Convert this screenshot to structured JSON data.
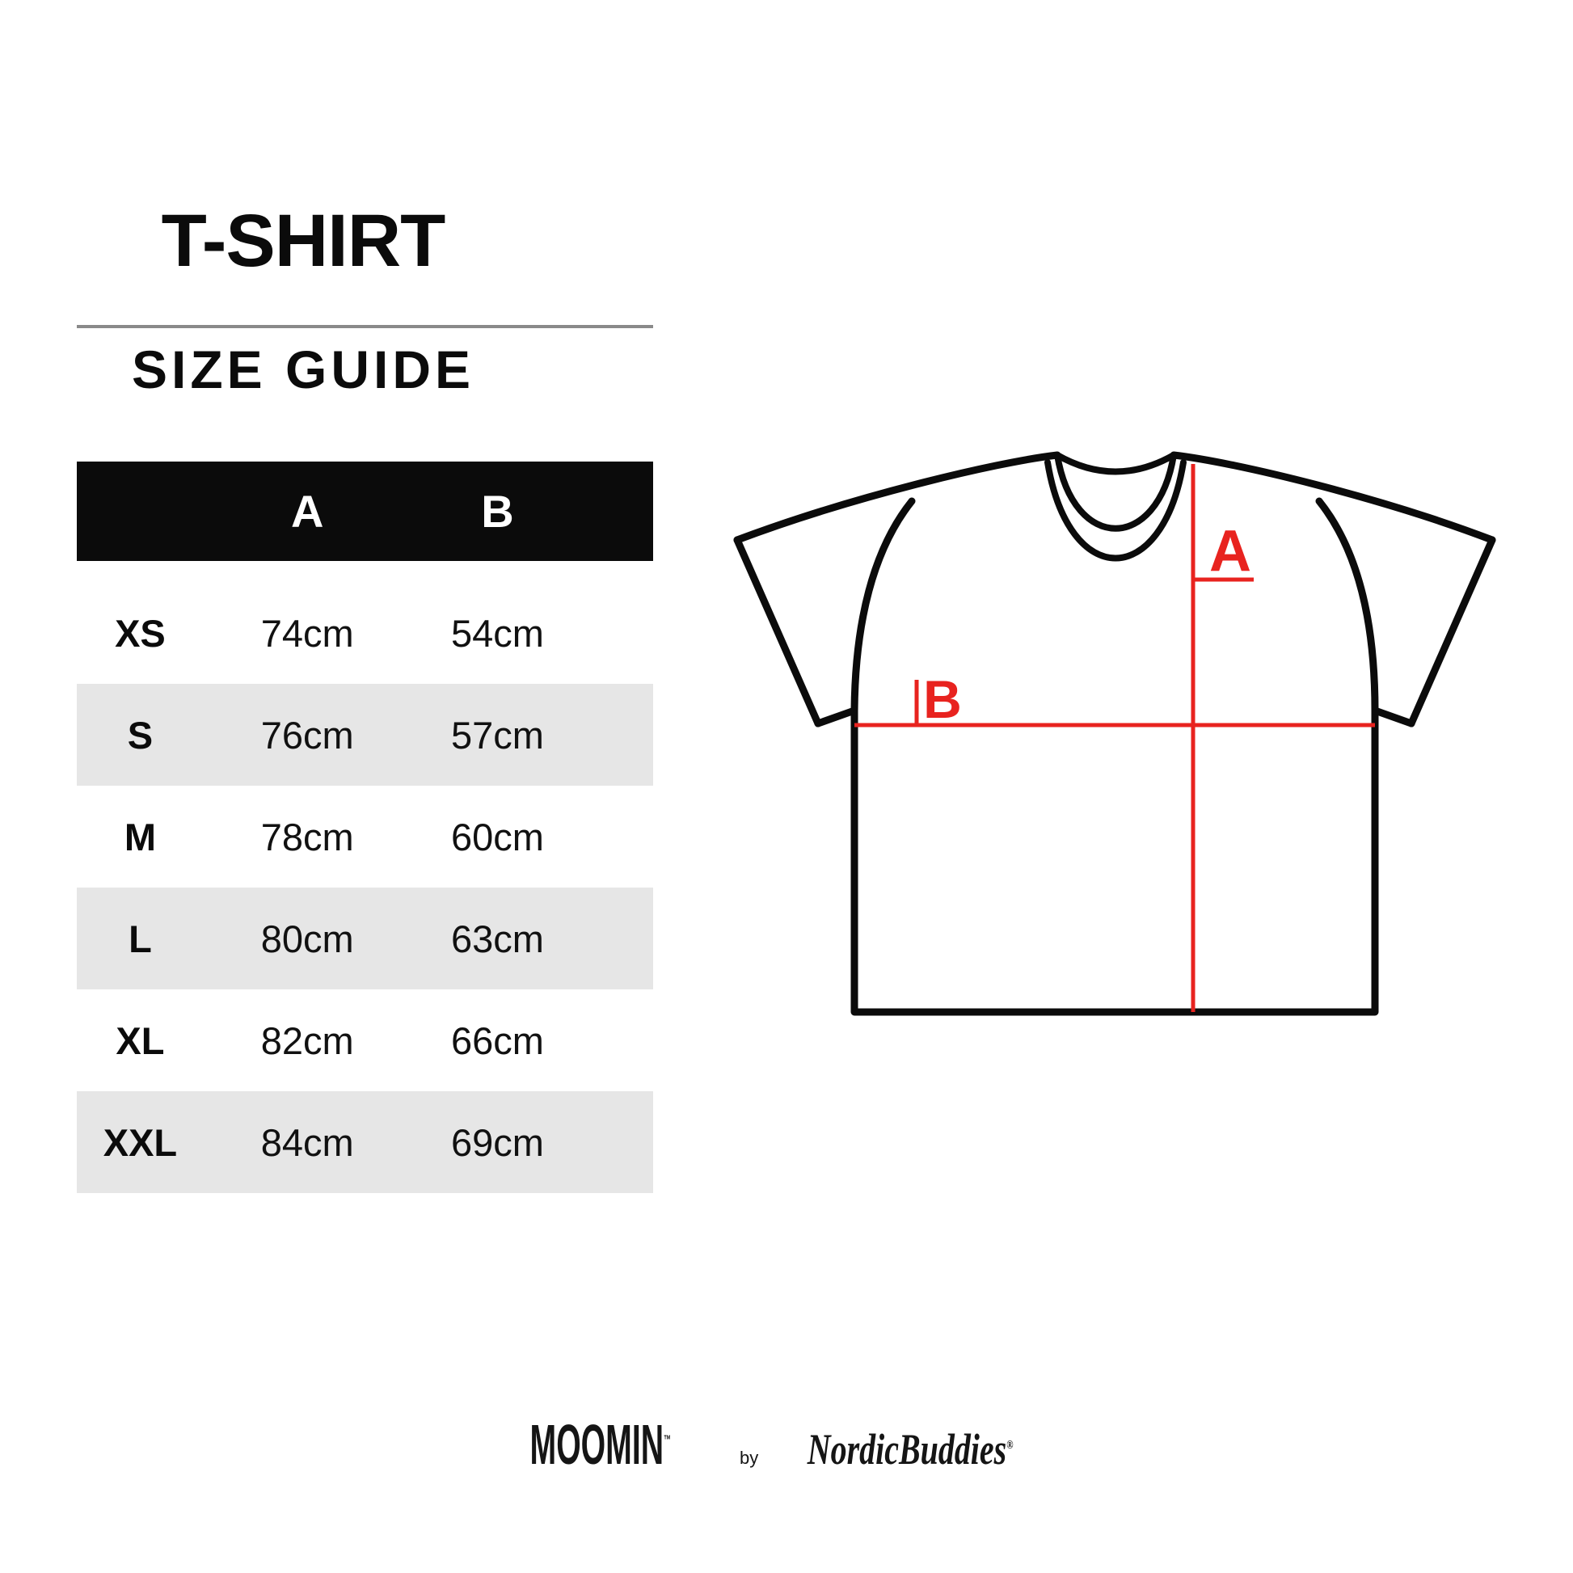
{
  "header": {
    "title": "T-SHIRT",
    "subtitle": "SIZE GUIDE"
  },
  "size_table": {
    "columns": [
      "A",
      "B"
    ],
    "rows": [
      {
        "size": "XS",
        "a": "74cm",
        "b": "54cm"
      },
      {
        "size": "S",
        "a": "76cm",
        "b": "57cm"
      },
      {
        "size": "M",
        "a": "78cm",
        "b": "60cm"
      },
      {
        "size": "L",
        "a": "80cm",
        "b": "63cm"
      },
      {
        "size": "XL",
        "a": "82cm",
        "b": "66cm"
      },
      {
        "size": "XXL",
        "a": "84cm",
        "b": "69cm"
      }
    ]
  },
  "diagram": {
    "label_a": "A",
    "label_b": "B",
    "line_color": "#e8231f",
    "outline_color": "#0b0b0b"
  },
  "footer": {
    "brand": "MOOMIN",
    "trademark": "™",
    "by": "by",
    "brand2": "NordicBuddies",
    "registered": "®"
  },
  "colors": {
    "row_alt": "#e6e6e6",
    "header_bar": "#0b0b0b",
    "divider": "#8a8a8a"
  }
}
